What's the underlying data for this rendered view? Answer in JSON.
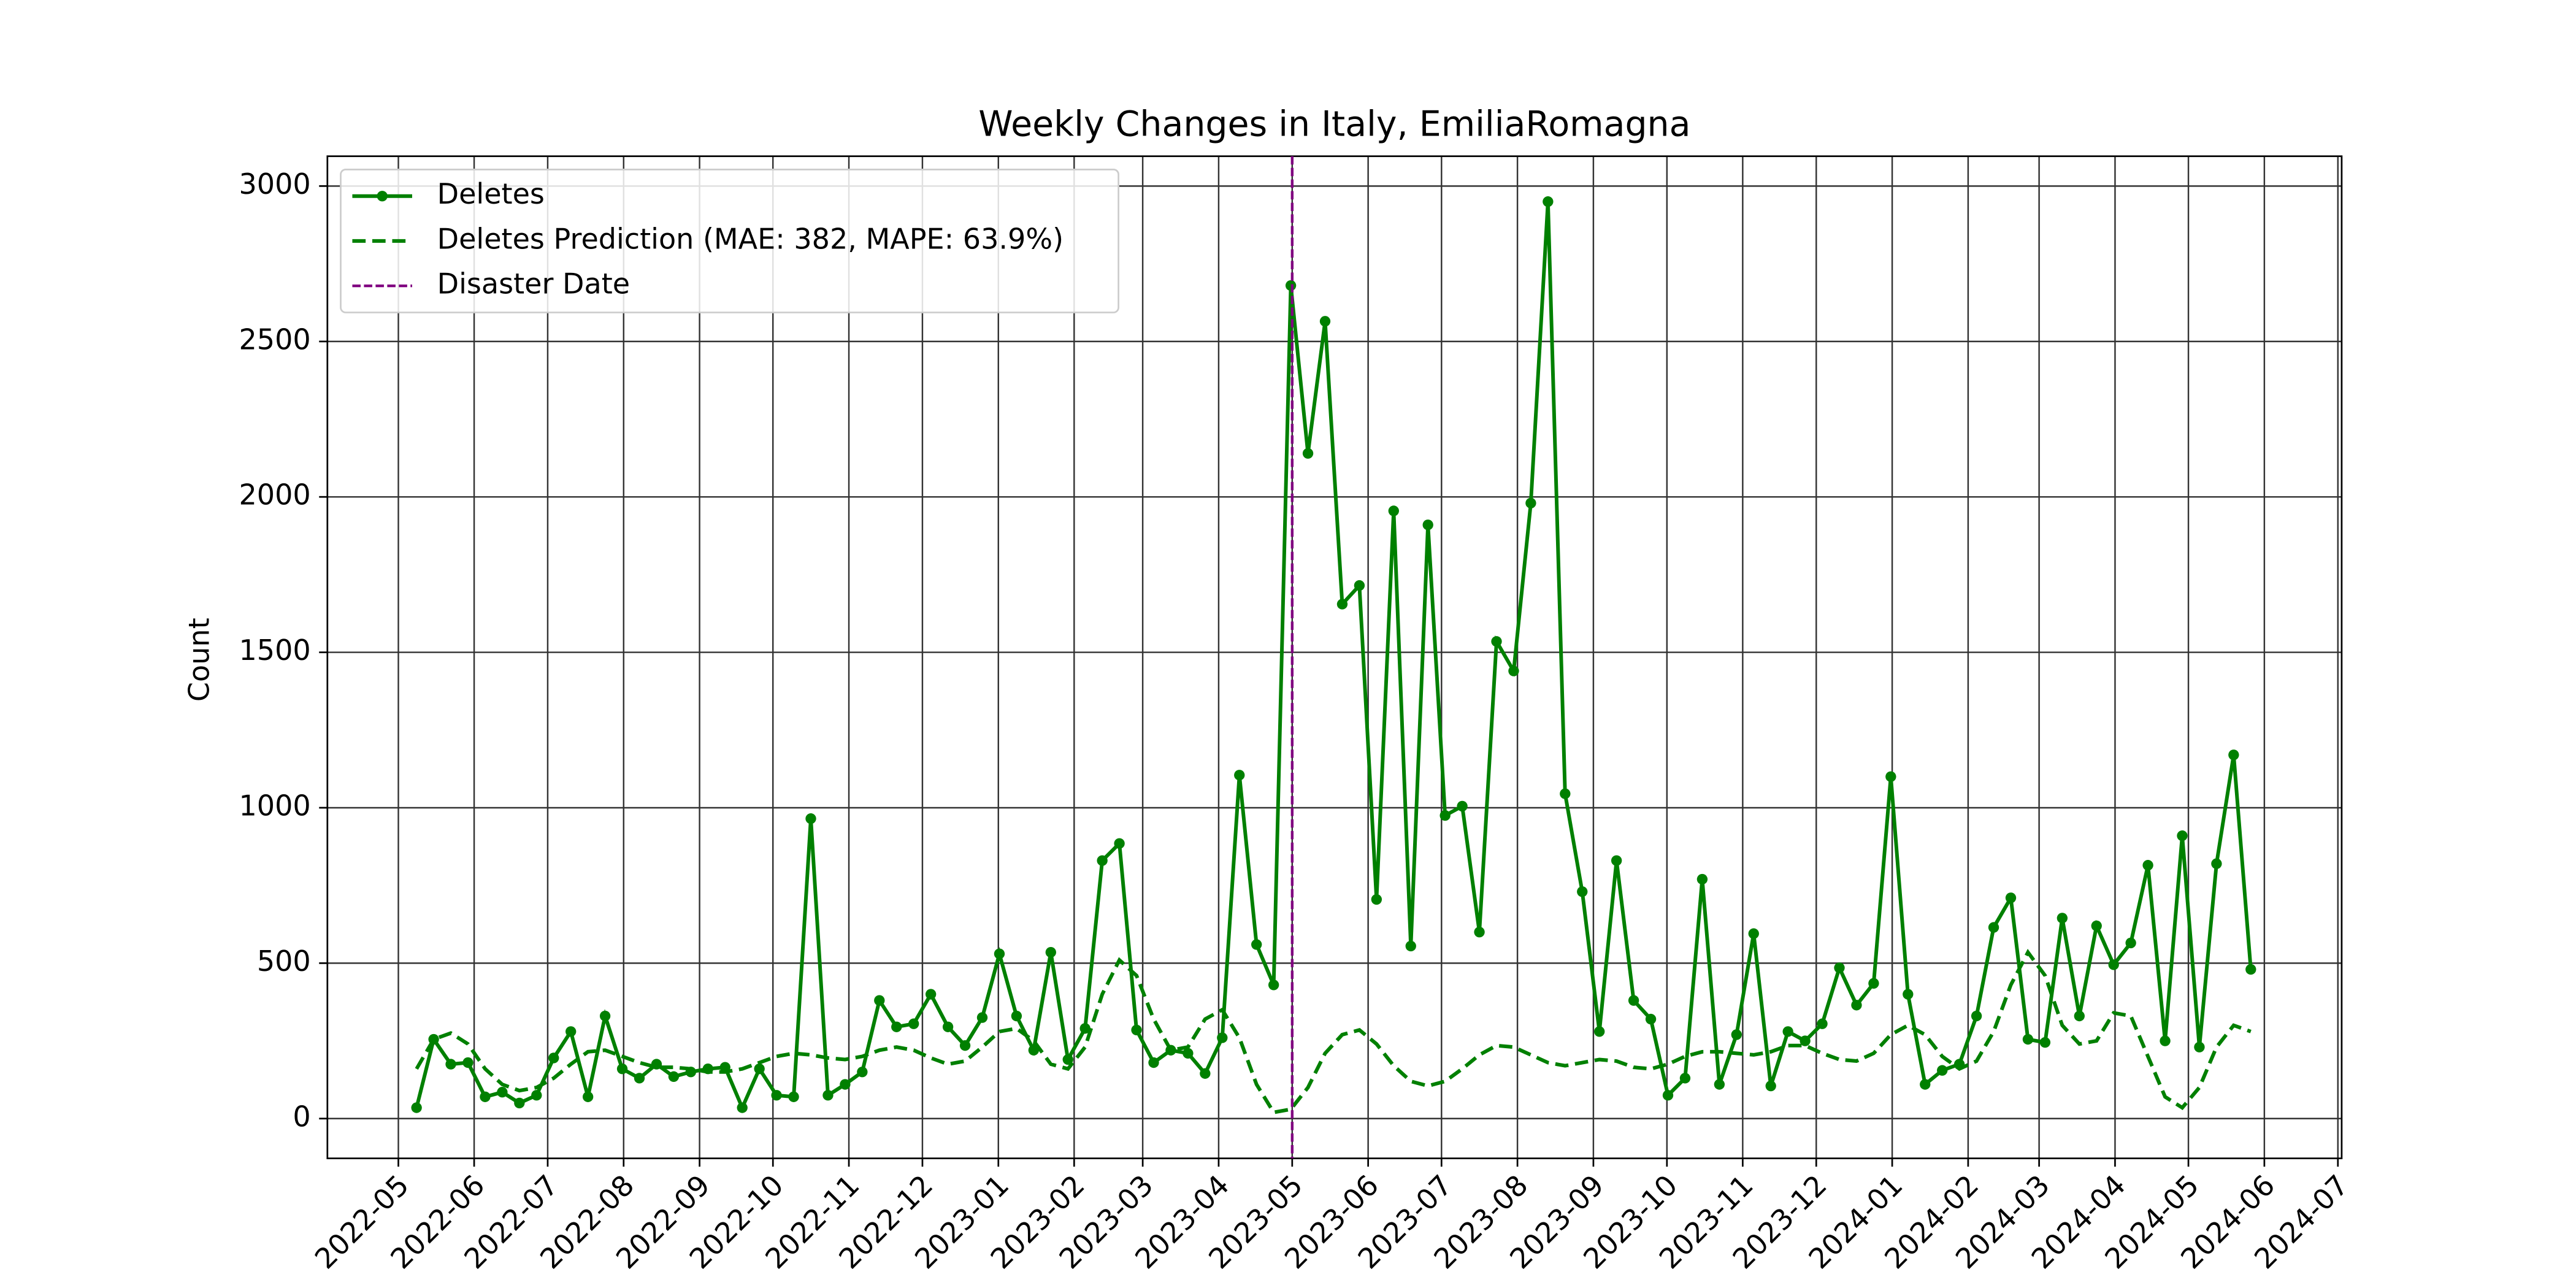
{
  "chart_data": {
    "type": "line",
    "title": "Weekly Changes in Italy, EmiliaRomagna",
    "y_label": "Count",
    "grid": true,
    "legend": "upper left",
    "xlim": [
      -5.2,
      112.3
    ],
    "xticks": [
      {
        "value": -1.06,
        "label": "2022-05"
      },
      {
        "value": 3.36,
        "label": "2022-06"
      },
      {
        "value": 7.65,
        "label": "2022-07"
      },
      {
        "value": 12.08,
        "label": "2022-08"
      },
      {
        "value": 16.51,
        "label": "2022-09"
      },
      {
        "value": 20.79,
        "label": "2022-10"
      },
      {
        "value": 25.22,
        "label": "2022-11"
      },
      {
        "value": 29.51,
        "label": "2022-12"
      },
      {
        "value": 33.94,
        "label": "2023-01"
      },
      {
        "value": 38.36,
        "label": "2023-02"
      },
      {
        "value": 42.36,
        "label": "2023-03"
      },
      {
        "value": 46.79,
        "label": "2023-04"
      },
      {
        "value": 51.08,
        "label": "2023-05"
      },
      {
        "value": 55.51,
        "label": "2023-06"
      },
      {
        "value": 59.79,
        "label": "2023-07"
      },
      {
        "value": 64.22,
        "label": "2023-08"
      },
      {
        "value": 68.65,
        "label": "2023-09"
      },
      {
        "value": 72.94,
        "label": "2023-10"
      },
      {
        "value": 77.36,
        "label": "2023-11"
      },
      {
        "value": 81.65,
        "label": "2023-12"
      },
      {
        "value": 86.08,
        "label": "2024-01"
      },
      {
        "value": 90.51,
        "label": "2024-02"
      },
      {
        "value": 94.65,
        "label": "2024-03"
      },
      {
        "value": 99.08,
        "label": "2024-04"
      },
      {
        "value": 103.36,
        "label": "2024-05"
      },
      {
        "value": 107.79,
        "label": "2024-06"
      },
      {
        "value": 112.08,
        "label": "2024-07"
      }
    ],
    "ylim": [
      -128,
      3096
    ],
    "yticks": [
      0,
      500,
      1000,
      1500,
      2000,
      2500,
      3000
    ],
    "series": [
      {
        "name": "Deletes",
        "color": "#008000",
        "style": "solid",
        "markers": true,
        "values": [
          35,
          255,
          175,
          180,
          70,
          85,
          50,
          75,
          195,
          280,
          70,
          330,
          160,
          130,
          175,
          135,
          150,
          160,
          165,
          35,
          160,
          75,
          70,
          965,
          75,
          110,
          150,
          380,
          295,
          305,
          400,
          295,
          235,
          325,
          530,
          330,
          220,
          535,
          190,
          290,
          830,
          885,
          285,
          180,
          220,
          210,
          145,
          260,
          1105,
          560,
          430,
          2680,
          2140,
          2565,
          1655,
          1715,
          705,
          1955,
          555,
          1910,
          975,
          1005,
          600,
          1535,
          1440,
          1980,
          2950,
          1045,
          730,
          280,
          830,
          380,
          320,
          75,
          130,
          770,
          110,
          270,
          595,
          105,
          280,
          250,
          305,
          485,
          365,
          435,
          1100,
          400,
          110,
          155,
          175,
          330,
          615,
          710,
          255,
          245,
          645,
          330,
          620,
          495,
          565,
          815,
          250,
          910,
          230,
          820,
          1170,
          480
        ]
      },
      {
        "name": "Deletes Prediction (MAE: 382, MAPE: 63.9%)",
        "color": "#008000",
        "style": "dashed",
        "markers": false,
        "values": [
          160,
          255,
          275,
          240,
          160,
          110,
          90,
          100,
          130,
          175,
          215,
          220,
          200,
          180,
          165,
          165,
          160,
          150,
          150,
          160,
          180,
          200,
          210,
          205,
          195,
          190,
          200,
          220,
          230,
          220,
          195,
          175,
          185,
          230,
          280,
          290,
          250,
          175,
          160,
          230,
          400,
          510,
          460,
          320,
          220,
          230,
          320,
          350,
          260,
          110,
          20,
          30,
          100,
          210,
          270,
          285,
          240,
          170,
          120,
          105,
          120,
          160,
          205,
          235,
          230,
          205,
          180,
          170,
          180,
          190,
          185,
          165,
          160,
          175,
          200,
          215,
          215,
          210,
          205,
          215,
          235,
          235,
          210,
          190,
          185,
          210,
          270,
          300,
          270,
          200,
          160,
          185,
          280,
          430,
          535,
          460,
          300,
          240,
          250,
          340,
          330,
          200,
          70,
          35,
          100,
          230,
          300,
          280
        ]
      }
    ],
    "vline": {
      "name": "Disaster Date",
      "x": 51.08,
      "color": "#800080"
    }
  }
}
